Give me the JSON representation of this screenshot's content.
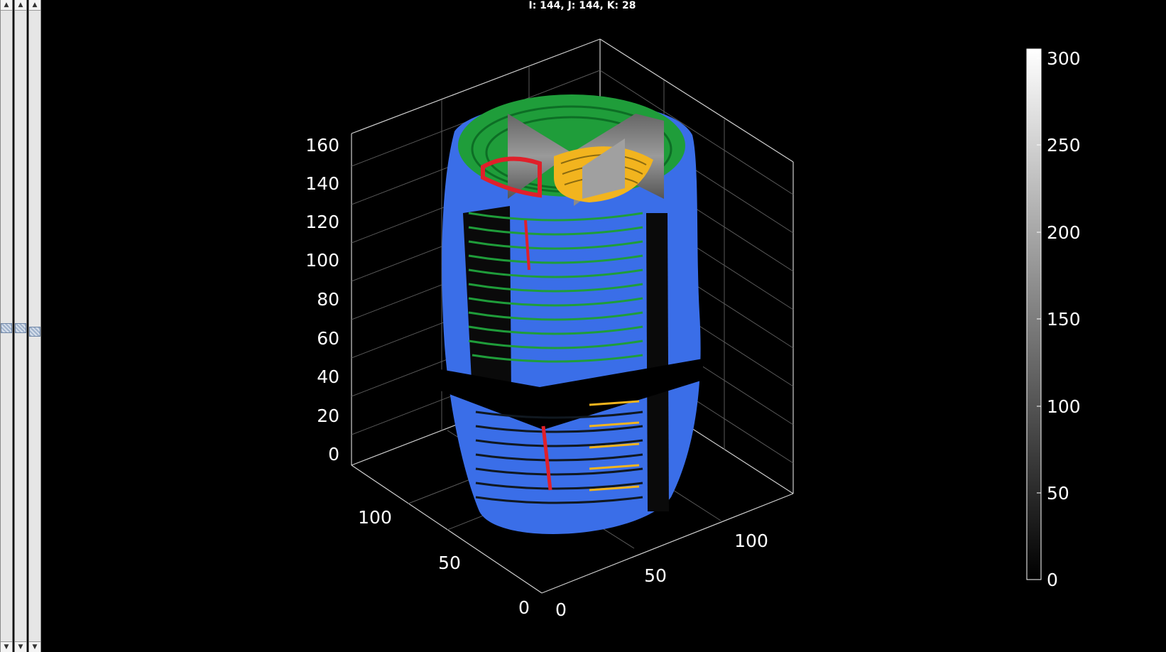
{
  "status_text": "I: 144, J:  144, K: 28",
  "slider_arrows": {
    "up": "▲",
    "down": "▼"
  },
  "z_ticks": [
    "160",
    "140",
    "120",
    "100",
    "80",
    "60",
    "40",
    "20",
    "0"
  ],
  "y_ticks": [
    "100",
    "50",
    "0"
  ],
  "x_ticks": [
    "0",
    "50",
    "100"
  ],
  "colorbar_ticks": [
    "300",
    "250",
    "200",
    "150",
    "100",
    "50",
    "0"
  ],
  "colors": {
    "blue": "#3a6ee8",
    "green": "#1f9d3a",
    "red": "#e0202a",
    "orange": "#f2b41e",
    "axis": "#cfcfcf"
  },
  "icons": [
    "up-arrow-icon",
    "down-arrow-icon"
  ]
}
